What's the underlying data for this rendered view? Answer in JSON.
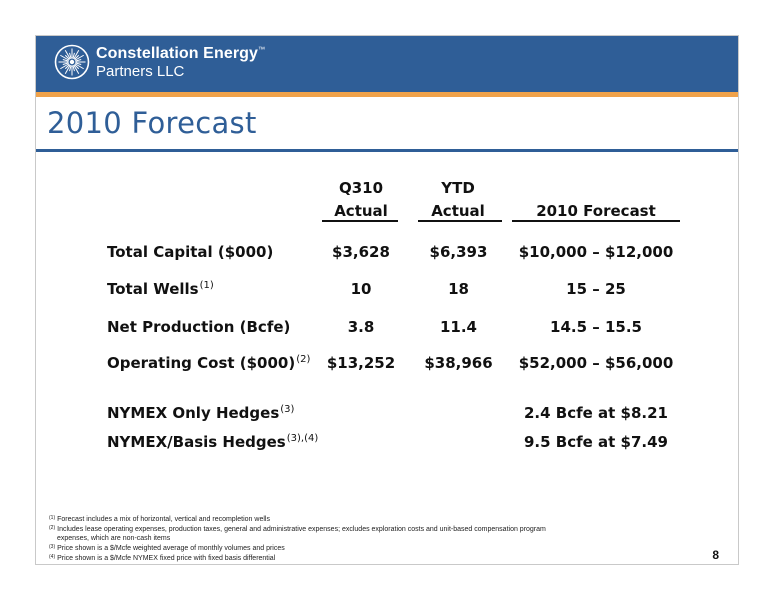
{
  "header": {
    "logo_line1": "Constellation Energy",
    "logo_tm": "™",
    "logo_line2": "Partners LLC",
    "brand_color": "#2f5e97",
    "accent_color": "#f0a24a"
  },
  "title": "2010 Forecast",
  "table": {
    "columns": [
      {
        "line1": "Q310",
        "line2": "Actual"
      },
      {
        "line1": "YTD",
        "line2": "Actual"
      },
      {
        "line1": "",
        "line2": "2010 Forecast"
      }
    ],
    "rows": [
      {
        "label": "Total Capital ($000)",
        "note": "",
        "q310": "$3,628",
        "ytd": "$6,393",
        "forecast": "$10,000 – $12,000"
      },
      {
        "label": "Total Wells",
        "note": "(1)",
        "q310": "10",
        "ytd": "18",
        "forecast": "15 – 25"
      },
      {
        "label": "Net Production (Bcfe)",
        "note": "",
        "q310": "3.8",
        "ytd": "11.4",
        "forecast": "14.5 – 15.5"
      },
      {
        "label": "Operating Cost ($000)",
        "note": "(2)",
        "q310": "$13,252",
        "ytd": "$38,966",
        "forecast": "$52,000 – $56,000"
      },
      {
        "label": "NYMEX Only Hedges",
        "note": "(3)",
        "q310": "",
        "ytd": "",
        "forecast": "2.4 Bcfe at $8.21"
      },
      {
        "label": "NYMEX/Basis Hedges",
        "note": "(3),(4)",
        "q310": "",
        "ytd": "",
        "forecast": "9.5 Bcfe at $7.49"
      }
    ]
  },
  "footnotes": [
    {
      "mark": "(1)",
      "text": "Forecast includes a mix of horizontal, vertical and recompletion wells"
    },
    {
      "mark": "(2)",
      "text": "Includes lease operating expenses, production taxes, general and administrative expenses; excludes exploration costs and unit-based compensation program"
    },
    {
      "mark": "",
      "text": "expenses, which are non-cash items"
    },
    {
      "mark": "(3)",
      "text": "Price shown is a $/Mcfe weighted average of monthly volumes and prices"
    },
    {
      "mark": "(4)",
      "text": "Price shown is a $/Mcfe NYMEX fixed price with fixed basis differential"
    }
  ],
  "page_number": "8"
}
